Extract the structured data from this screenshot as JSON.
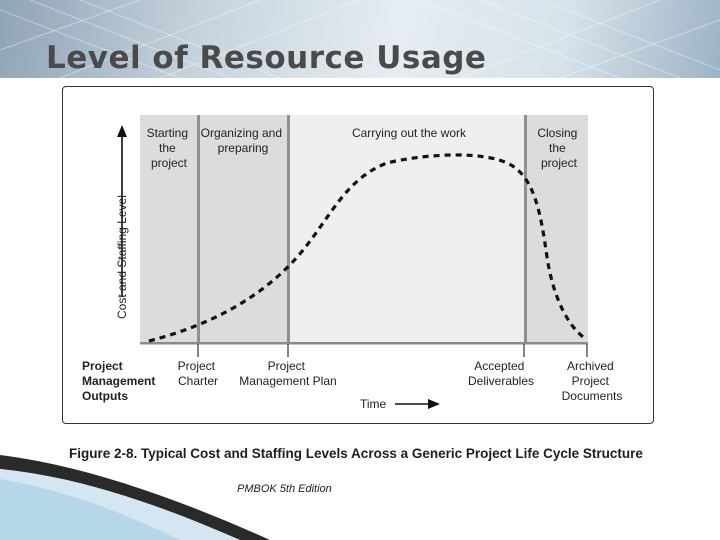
{
  "slide": {
    "title": "Level of Resource Usage",
    "caption": "Figure 2-8. Typical Cost and Staffing Levels Across a Generic Project Life Cycle Structure",
    "source": "PMBOK 5th Edition"
  },
  "diagram": {
    "y_axis_label": "Cost and Staffing Level",
    "x_axis_label": "Time",
    "phases": [
      {
        "lines": [
          "Starting",
          "the",
          "project"
        ]
      },
      {
        "lines": [
          "Organizing and",
          "preparing"
        ]
      },
      {
        "lines": [
          "Carrying out the work"
        ]
      },
      {
        "lines": [
          "Closing",
          "the",
          "project"
        ]
      }
    ],
    "outputs_heading": [
      "Project",
      "Management",
      "Outputs"
    ],
    "outputs": [
      {
        "lines": [
          "Project",
          "Charter"
        ]
      },
      {
        "lines": [
          "Project",
          "Management Plan"
        ]
      },
      {
        "lines": [
          "Accepted",
          "Deliverables"
        ]
      },
      {
        "lines": [
          "Archived",
          "Project",
          "Documents"
        ]
      }
    ],
    "colors": {
      "phase_light": "#efefef",
      "phase_dark": "#dcdcdc",
      "divider": "#909090",
      "curve": "#111111"
    }
  }
}
